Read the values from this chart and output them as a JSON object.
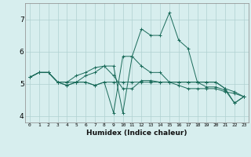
{
  "xlabel": "Humidex (Indice chaleur)",
  "x_values": [
    0,
    1,
    2,
    3,
    4,
    5,
    6,
    7,
    8,
    9,
    10,
    11,
    12,
    13,
    14,
    15,
    16,
    17,
    18,
    19,
    20,
    21,
    22,
    23
  ],
  "series": [
    [
      5.2,
      5.35,
      5.35,
      5.05,
      5.05,
      5.05,
      5.25,
      5.35,
      5.55,
      5.55,
      4.1,
      5.85,
      6.7,
      6.5,
      6.5,
      7.2,
      6.35,
      6.1,
      5.05,
      4.9,
      4.9,
      4.8,
      4.4,
      4.6
    ],
    [
      5.2,
      5.35,
      5.35,
      5.05,
      5.05,
      5.25,
      5.35,
      5.5,
      5.55,
      5.25,
      4.85,
      4.85,
      5.1,
      5.1,
      5.05,
      5.05,
      5.05,
      5.05,
      5.05,
      5.05,
      5.05,
      4.85,
      4.75,
      4.6
    ],
    [
      5.2,
      5.35,
      5.35,
      5.05,
      4.95,
      5.05,
      5.05,
      4.95,
      5.05,
      5.05,
      5.05,
      5.05,
      5.05,
      5.05,
      5.05,
      5.05,
      4.95,
      4.85,
      4.85,
      4.85,
      4.85,
      4.75,
      4.7,
      4.6
    ],
    [
      5.2,
      5.35,
      5.35,
      5.05,
      4.95,
      5.05,
      5.05,
      4.95,
      5.05,
      4.1,
      5.85,
      5.85,
      5.55,
      5.35,
      5.35,
      5.05,
      5.05,
      5.05,
      5.05,
      5.05,
      5.05,
      4.85,
      4.4,
      4.6
    ]
  ],
  "line_color": "#1a6b5a",
  "bg_color": "#d7eeee",
  "grid_color": "#b0d0d0",
  "ylim": [
    3.8,
    7.5
  ],
  "yticks": [
    4,
    5,
    6,
    7
  ],
  "xlim": [
    -0.5,
    23.5
  ]
}
